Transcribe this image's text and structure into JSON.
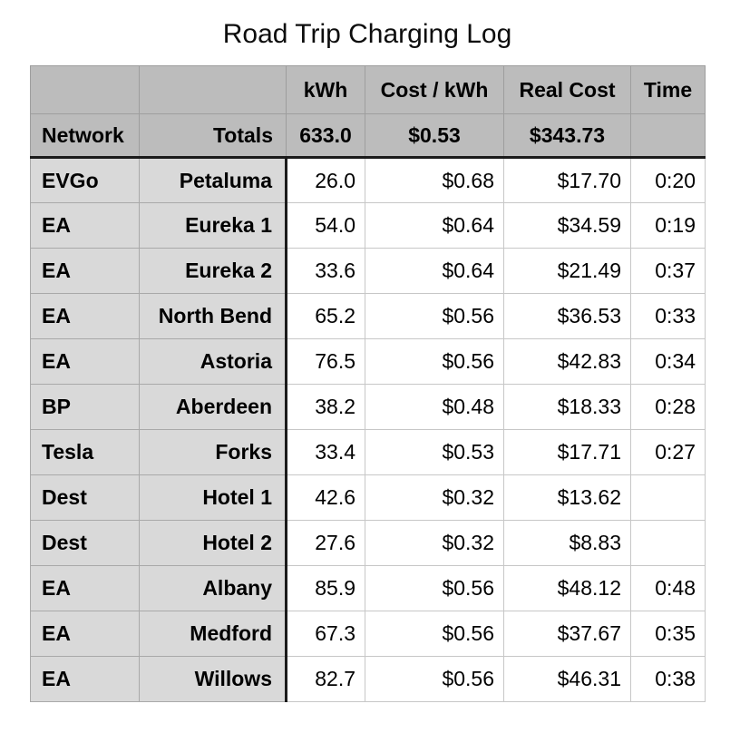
{
  "page_title": "Road Trip Charging Log",
  "chart_data": {
    "type": "table",
    "title": "Road Trip Charging Log",
    "column_headers": [
      "",
      "",
      "kWh",
      "Cost / kWh",
      "Real Cost",
      "Time"
    ],
    "totals_row": [
      "Network",
      "Totals",
      "633.0",
      "$0.53",
      "$343.73",
      ""
    ],
    "rows": [
      [
        "EVGo",
        "Petaluma",
        "26.0",
        "$0.68",
        "$17.70",
        "0:20"
      ],
      [
        "EA",
        "Eureka 1",
        "54.0",
        "$0.64",
        "$34.59",
        "0:19"
      ],
      [
        "EA",
        "Eureka 2",
        "33.6",
        "$0.64",
        "$21.49",
        "0:37"
      ],
      [
        "EA",
        "North Bend",
        "65.2",
        "$0.56",
        "$36.53",
        "0:33"
      ],
      [
        "EA",
        "Astoria",
        "76.5",
        "$0.56",
        "$42.83",
        "0:34"
      ],
      [
        "BP",
        "Aberdeen",
        "38.2",
        "$0.48",
        "$18.33",
        "0:28"
      ],
      [
        "Tesla",
        "Forks",
        "33.4",
        "$0.53",
        "$17.71",
        "0:27"
      ],
      [
        "Dest",
        "Hotel 1",
        "42.6",
        "$0.32",
        "$13.62",
        ""
      ],
      [
        "Dest",
        "Hotel 2",
        "27.6",
        "$0.32",
        "$8.83",
        ""
      ],
      [
        "EA",
        "Albany",
        "85.9",
        "$0.56",
        "$48.12",
        "0:48"
      ],
      [
        "EA",
        "Medford",
        "67.3",
        "$0.56",
        "$37.67",
        "0:35"
      ],
      [
        "EA",
        "Willows",
        "82.7",
        "$0.56",
        "$46.31",
        "0:38"
      ]
    ],
    "layout": {
      "totals_row_is_bold": true,
      "label_columns_bold": true,
      "numeric_data_alignment": "right",
      "header_alignment": "center"
    }
  },
  "colors": {
    "header_bg": "#bcbcbc",
    "label_bg": "#d9d9d9",
    "data_cell_bg": "#ffffff",
    "divider": "#1b1b1b",
    "grid_line": "#a9a9a9",
    "text": "#000000"
  }
}
